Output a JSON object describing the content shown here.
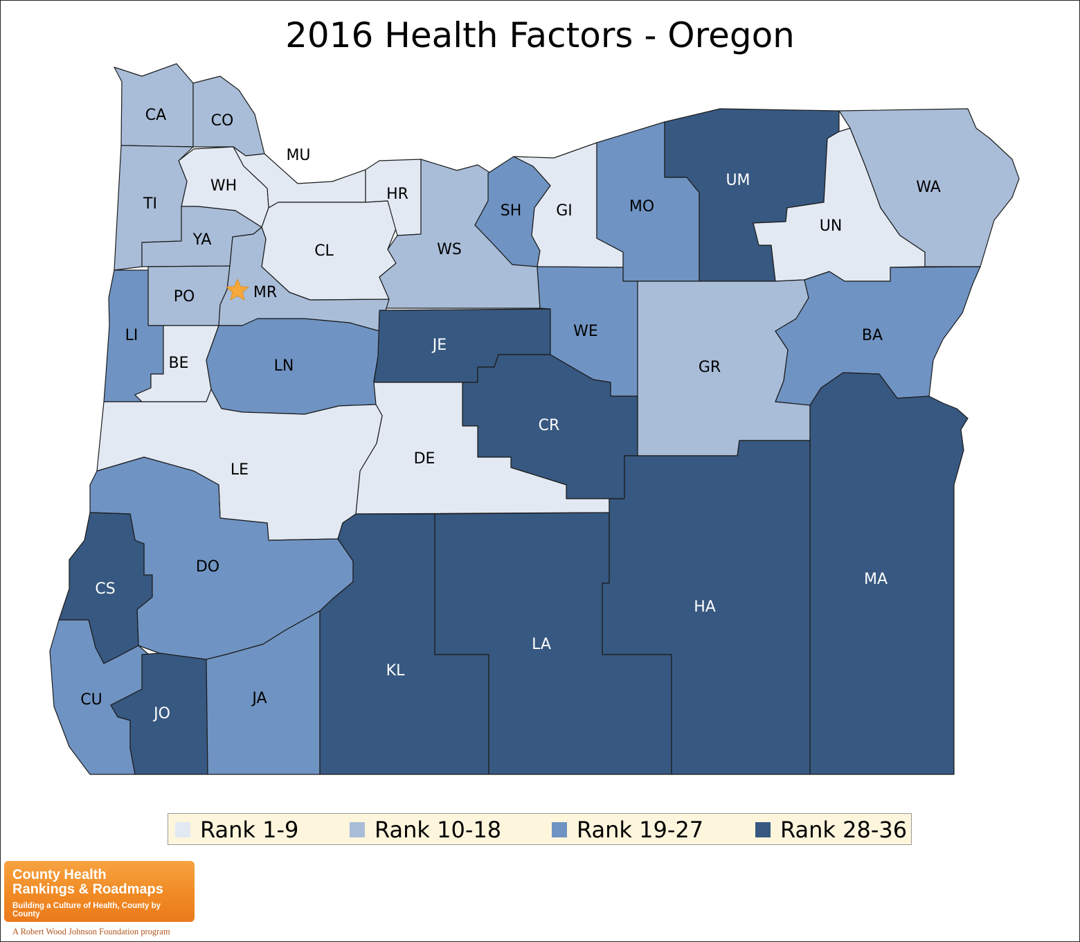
{
  "title": "2016 Health Factors - Oregon",
  "colors": {
    "rank_1_9": "#e2e9f3",
    "rank_10_18": "#a9bdd8",
    "rank_19_27": "#6f93c2",
    "rank_28_36": "#375880",
    "label_dark": "#000000",
    "label_light": "#ffffff",
    "star": "#f6a93b"
  },
  "legend": [
    {
      "label": "Rank 1-9",
      "color": "#e2e9f3"
    },
    {
      "label": "Rank 10-18",
      "color": "#a9bdd8"
    },
    {
      "label": "Rank 19-27",
      "color": "#6f93c2"
    },
    {
      "label": "Rank 28-36",
      "color": "#375880"
    }
  ],
  "counties": {
    "CA": {
      "label": "CA",
      "rank_group": "Rank 10-18"
    },
    "CO": {
      "label": "CO",
      "rank_group": "Rank 10-18"
    },
    "MU": {
      "label": "MU",
      "rank_group": "Rank 1-9"
    },
    "WH": {
      "label": "WH",
      "rank_group": "Rank 1-9"
    },
    "TI": {
      "label": "TI",
      "rank_group": "Rank 10-18"
    },
    "YA": {
      "label": "YA",
      "rank_group": "Rank 10-18"
    },
    "CL": {
      "label": "CL",
      "rank_group": "Rank 1-9"
    },
    "HR": {
      "label": "HR",
      "rank_group": "Rank 1-9"
    },
    "WS": {
      "label": "WS",
      "rank_group": "Rank 10-18"
    },
    "SH": {
      "label": "SH",
      "rank_group": "Rank 19-27"
    },
    "GI": {
      "label": "GI",
      "rank_group": "Rank 1-9"
    },
    "MO": {
      "label": "MO",
      "rank_group": "Rank 19-27"
    },
    "UM": {
      "label": "UM",
      "rank_group": "Rank 28-36"
    },
    "UN": {
      "label": "UN",
      "rank_group": "Rank 1-9"
    },
    "WA": {
      "label": "WA",
      "rank_group": "Rank 10-18"
    },
    "PO": {
      "label": "PO",
      "rank_group": "Rank 10-18"
    },
    "MR": {
      "label": "MR",
      "rank_group": "Rank 10-18"
    },
    "LI": {
      "label": "LI",
      "rank_group": "Rank 19-27"
    },
    "BE": {
      "label": "BE",
      "rank_group": "Rank 1-9"
    },
    "LN": {
      "label": "LN",
      "rank_group": "Rank 19-27"
    },
    "JE": {
      "label": "JE",
      "rank_group": "Rank 28-36"
    },
    "WE": {
      "label": "WE",
      "rank_group": "Rank 19-27"
    },
    "GR": {
      "label": "GR",
      "rank_group": "Rank 10-18"
    },
    "BA": {
      "label": "BA",
      "rank_group": "Rank 19-27"
    },
    "CR": {
      "label": "CR",
      "rank_group": "Rank 28-36"
    },
    "DE": {
      "label": "DE",
      "rank_group": "Rank 1-9"
    },
    "LE": {
      "label": "LE",
      "rank_group": "Rank 1-9"
    },
    "DO": {
      "label": "DO",
      "rank_group": "Rank 19-27"
    },
    "CS": {
      "label": "CS",
      "rank_group": "Rank 28-36"
    },
    "CU": {
      "label": "CU",
      "rank_group": "Rank 19-27"
    },
    "JO": {
      "label": "JO",
      "rank_group": "Rank 28-36"
    },
    "JA": {
      "label": "JA",
      "rank_group": "Rank 19-27"
    },
    "KL": {
      "label": "KL",
      "rank_group": "Rank 28-36"
    },
    "LA": {
      "label": "LA",
      "rank_group": "Rank 28-36"
    },
    "HA": {
      "label": "HA",
      "rank_group": "Rank 28-36"
    },
    "MA": {
      "label": "MA",
      "rank_group": "Rank 28-36"
    }
  },
  "capital_marker": {
    "county": "MR",
    "icon": "star-icon"
  },
  "logo": {
    "line1": "County Health",
    "line2": "Rankings & Roadmaps",
    "line3": "Building a Culture of Health, County by County",
    "footer": "A Robert Wood Johnson Foundation program"
  }
}
